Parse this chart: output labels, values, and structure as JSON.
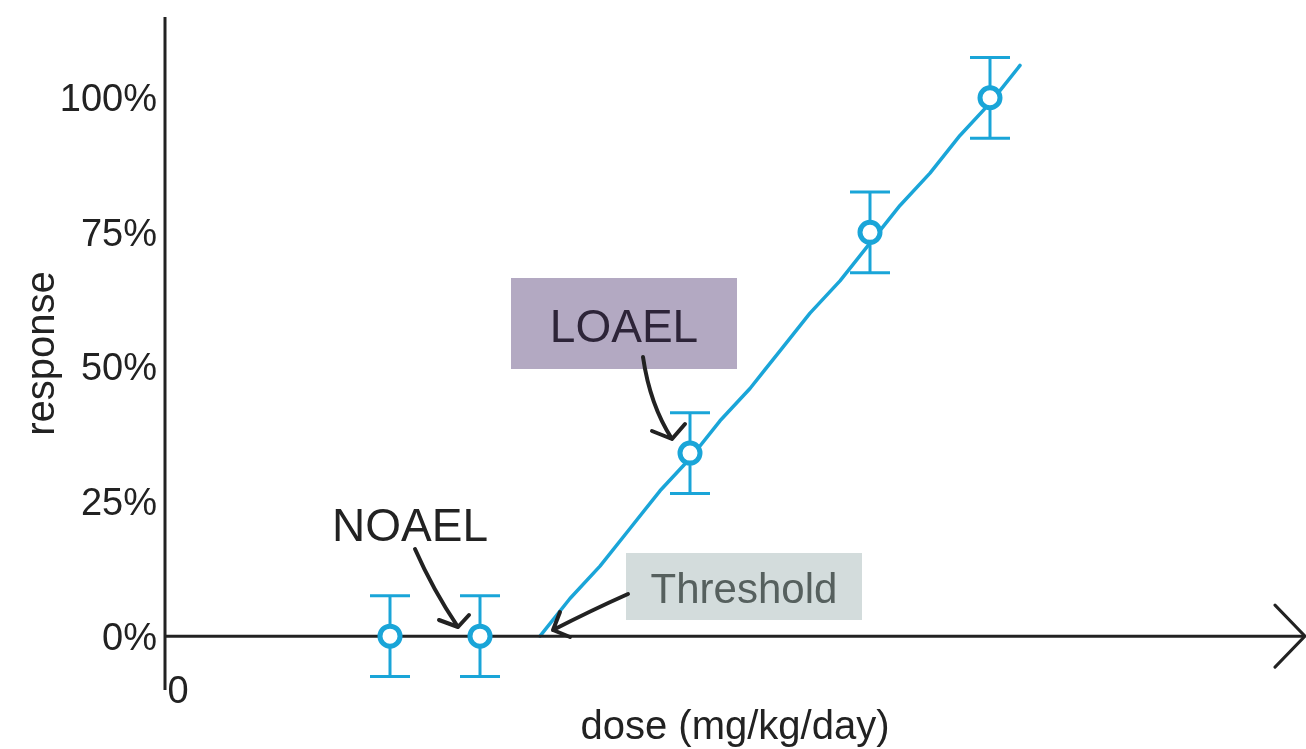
{
  "chart_data": {
    "type": "scatter",
    "xlabel": "dose (mg/kg/day)",
    "ylabel": "response",
    "categories": [
      null,
      null,
      null,
      null,
      null,
      null,
      null,
      null,
      null,
      null,
      null,
      null,
      null,
      null,
      null,
      null,
      null,
      null,
      null,
      null,
      null,
      null,
      null,
      null,
      null,
      null,
      null,
      null,
      null,
      null,
      null,
      null,
      null,
      null,
      null,
      null,
      null,
      null
    ],
    "series": [
      {
        "type": "line",
        "color": "#1aa5d8",
        "marker": "none",
        "values": [
          null,
          null,
          null,
          null,
          null,
          null,
          null,
          null,
          null,
          null,
          null,
          null,
          0,
          7,
          13,
          20,
          27,
          33,
          40,
          46,
          53,
          60,
          66,
          73,
          80,
          86,
          93,
          99,
          106,
          null,
          null,
          null,
          null,
          null,
          null,
          null,
          null,
          null
        ]
      },
      {
        "color": "#1aa5d8",
        "values": [
          null,
          null,
          null,
          null,
          null,
          null,
          null,
          0,
          null,
          null,
          0,
          null,
          null,
          null,
          null,
          null,
          null,
          34,
          null,
          null,
          null,
          null,
          null,
          75,
          null,
          null,
          null,
          100,
          null,
          null,
          null,
          null,
          null,
          null,
          null,
          null,
          null,
          null
        ],
        "errors": [
          null,
          null,
          null,
          null,
          null,
          null,
          null,
          7.5,
          null,
          null,
          7.5,
          null,
          null,
          null,
          null,
          null,
          null,
          7.5,
          null,
          null,
          null,
          null,
          null,
          7.5,
          null,
          null,
          null,
          7.5,
          null,
          null,
          null,
          null,
          null,
          null,
          null,
          null,
          null,
          null
        ]
      }
    ],
    "marker": "circle",
    "ylim": [
      -10,
      115
    ],
    "yticks": [
      {
        "value": 0,
        "label": "0%"
      },
      {
        "value": 25,
        "label": "25%"
      },
      {
        "value": 50,
        "label": "50%"
      },
      {
        "value": 75,
        "label": "75%"
      },
      {
        "value": 100,
        "label": "100%"
      }
    ],
    "annotations": [
      "LOAEL",
      "NOAEL",
      "Threshold",
      "0"
    ]
  }
}
